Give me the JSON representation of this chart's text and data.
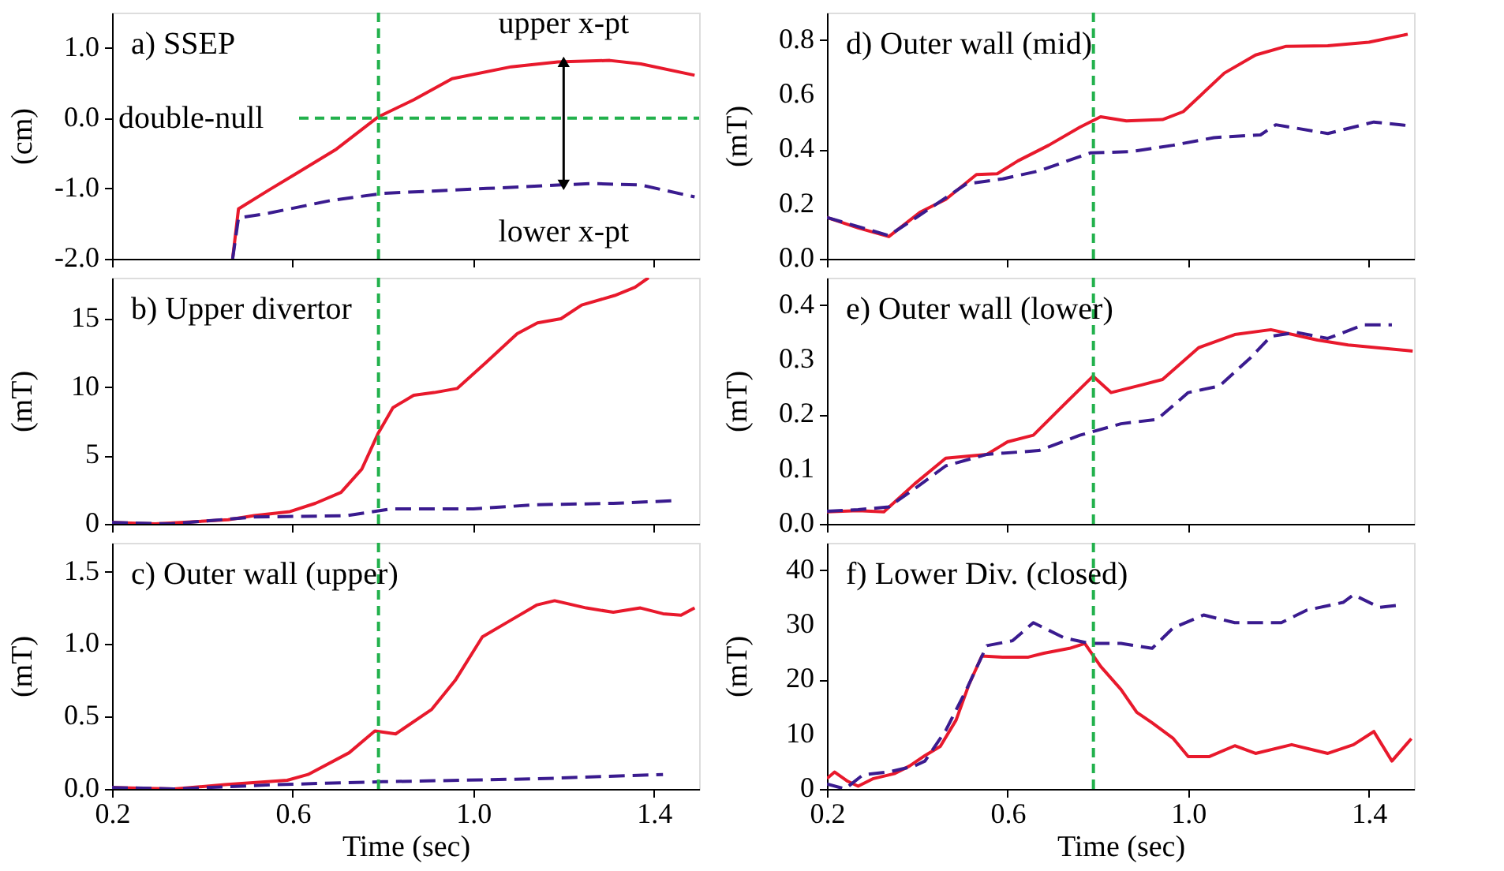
{
  "chart_data": [
    {
      "type": "line",
      "title": "a) SSEP",
      "ylabel": "(cm)",
      "xlim": [
        0.2,
        1.5
      ],
      "xticks": [
        0.2,
        0.6,
        1,
        1.4
      ],
      "ylim": [
        -2.0,
        1.5
      ],
      "yticks": [
        {
          "value": -2,
          "label": "-2.0"
        },
        {
          "value": -1,
          "label": "-1.0"
        },
        {
          "value": 0,
          "label": "0.0"
        },
        {
          "value": 1,
          "label": "1.0"
        }
      ],
      "tick_labels": "y",
      "grid": false,
      "annotations": [
        {
          "text": "upper x-pt",
          "x": 1.2,
          "y": 0.8
        },
        {
          "text": "lower x-pt",
          "x": 1.2,
          "y": -0.95
        }
      ],
      "ref_lines": [
        {
          "axis": "x",
          "value": 0.79,
          "color": "#22b14c",
          "line_style": "dashed"
        },
        {
          "axis": "y",
          "value": 0,
          "label": "double-null",
          "color": "#22b14c",
          "line_style": "dashed"
        }
      ],
      "series": [
        {
          "color": "#e8192c",
          "line_style": "solid",
          "x": [
            0.467,
            0.48,
            0.548,
            0.605,
            0.697,
            0.79,
            0.868,
            0.953,
            1.084,
            1.187,
            1.302,
            1.371,
            1.49
          ],
          "values": [
            -2.0,
            -1.29,
            -1.02,
            -0.8,
            -0.44,
            0.02,
            0.26,
            0.56,
            0.73,
            0.8,
            0.82,
            0.77,
            0.61
          ]
        },
        {
          "color": "#3a1b8f",
          "line_style": "dashed",
          "x": [
            0.467,
            0.48,
            0.548,
            0.685,
            0.8,
            1.03,
            1.26,
            1.37,
            1.49
          ],
          "values": [
            -2.0,
            -1.42,
            -1.35,
            -1.17,
            -1.07,
            -1.0,
            -0.93,
            -0.95,
            -1.12
          ]
        }
      ]
    },
    {
      "type": "line",
      "title": "b) Upper divertor",
      "ylabel": "(mT)",
      "xlim": [
        0.2,
        1.5
      ],
      "xticks": [
        0.2,
        0.6,
        1,
        1.4
      ],
      "ylim": [
        0,
        18
      ],
      "yticks": [
        0,
        5,
        10,
        15
      ],
      "tick_labels": "y",
      "grid": false,
      "ref_lines": [
        {
          "axis": "x",
          "value": 0.79,
          "color": "#22b14c",
          "line_style": "dashed"
        }
      ],
      "series": [
        {
          "color": "#e8192c",
          "line_style": "solid",
          "x": [
            0.2,
            0.296,
            0.457,
            0.515,
            0.594,
            0.65,
            0.707,
            0.753,
            0.789,
            0.822,
            0.868,
            0.913,
            0.964,
            1.028,
            1.097,
            1.142,
            1.194,
            1.24,
            1.313,
            1.358,
            1.388
          ],
          "values": [
            0.1,
            0,
            0.3,
            0.6,
            0.9,
            1.5,
            2.3,
            4.0,
            6.6,
            8.5,
            9.4,
            9.6,
            9.9,
            11.8,
            13.9,
            14.7,
            15.0,
            16.0,
            16.7,
            17.3,
            18.0
          ]
        },
        {
          "color": "#3a1b8f",
          "line_style": "dashed",
          "x": [
            0.2,
            0.33,
            0.514,
            0.72,
            0.82,
            1.0,
            1.14,
            1.31,
            1.45
          ],
          "values": [
            0.1,
            0,
            0.5,
            0.6,
            1.1,
            1.1,
            1.4,
            1.5,
            1.7
          ]
        }
      ]
    },
    {
      "type": "line",
      "title": "c) Outer wall (upper)",
      "ylabel": "(mT)",
      "xlabel": "Time (sec)",
      "xlim": [
        0.2,
        1.5
      ],
      "xticks": [
        0.2,
        0.6,
        {
          "value": 1.0,
          "label": "1.0"
        },
        1.4
      ],
      "ylim": [
        0,
        1.7
      ],
      "yticks": [
        {
          "value": 0,
          "label": "0.0"
        },
        0.5,
        {
          "value": 1,
          "label": "1.0"
        },
        1.5
      ],
      "grid": false,
      "ref_lines": [
        {
          "axis": "x",
          "value": 0.79,
          "color": "#22b14c",
          "line_style": "dashed"
        }
      ],
      "series": [
        {
          "color": "#e8192c",
          "line_style": "solid",
          "x": [
            0.2,
            0.337,
            0.45,
            0.588,
            0.634,
            0.725,
            0.782,
            0.828,
            0.908,
            0.96,
            1.02,
            1.08,
            1.14,
            1.18,
            1.25,
            1.31,
            1.37,
            1.42,
            1.46,
            1.49
          ],
          "values": [
            0.01,
            0,
            0.03,
            0.06,
            0.1,
            0.25,
            0.4,
            0.38,
            0.55,
            0.75,
            1.05,
            1.16,
            1.27,
            1.3,
            1.25,
            1.22,
            1.25,
            1.21,
            1.2,
            1.25
          ]
        },
        {
          "color": "#3a1b8f",
          "line_style": "dashed",
          "x": [
            0.2,
            0.337,
            0.565,
            0.8,
            1.14,
            1.42
          ],
          "values": [
            0.01,
            0,
            0.03,
            0.05,
            0.07,
            0.1
          ]
        }
      ]
    },
    {
      "type": "line",
      "title": "d) Outer wall (mid)",
      "ylabel": "(mT)",
      "xlim": [
        0.2,
        1.5
      ],
      "xticks": [
        0.2,
        0.6,
        1,
        1.4
      ],
      "ylim": [
        0,
        0.9
      ],
      "yticks": [
        {
          "value": 0,
          "label": "0.0"
        },
        0.2,
        0.4,
        0.6,
        0.8
      ],
      "tick_labels": "y",
      "grid": false,
      "ref_lines": [
        {
          "axis": "x",
          "value": 0.79,
          "color": "#22b14c",
          "line_style": "dashed"
        }
      ],
      "series": [
        {
          "color": "#e8192c",
          "line_style": "solid",
          "x": [
            0.2,
            0.269,
            0.337,
            0.406,
            0.463,
            0.531,
            0.577,
            0.623,
            0.691,
            0.76,
            0.806,
            0.863,
            0.943,
            0.989,
            1.08,
            1.149,
            1.217,
            1.309,
            1.4,
            1.486
          ],
          "values": [
            0.151,
            0.113,
            0.081,
            0.17,
            0.217,
            0.308,
            0.311,
            0.358,
            0.415,
            0.481,
            0.519,
            0.504,
            0.509,
            0.538,
            0.679,
            0.745,
            0.777,
            0.779,
            0.792,
            0.821
          ]
        },
        {
          "color": "#3a1b8f",
          "line_style": "dashed",
          "x": [
            0.2,
            0.337,
            0.406,
            0.509,
            0.589,
            0.669,
            0.783,
            0.874,
            0.966,
            1.057,
            1.16,
            1.194,
            1.309,
            1.411,
            1.486
          ],
          "values": [
            0.151,
            0.085,
            0.16,
            0.274,
            0.292,
            0.321,
            0.387,
            0.392,
            0.415,
            0.443,
            0.453,
            0.49,
            0.458,
            0.5,
            0.487
          ]
        }
      ]
    },
    {
      "type": "line",
      "title": "e) Outer wall (lower)",
      "ylabel": "(mT)",
      "xlim": [
        0.2,
        1.5
      ],
      "xticks": [
        0.2,
        0.6,
        1,
        1.4
      ],
      "ylim": [
        0,
        0.45
      ],
      "yticks": [
        {
          "value": 0,
          "label": "0.0"
        },
        0.1,
        0.2,
        0.3,
        0.4
      ],
      "tick_labels": "y",
      "grid": false,
      "ref_lines": [
        {
          "axis": "x",
          "value": 0.79,
          "color": "#22b14c",
          "line_style": "dashed"
        }
      ],
      "series": [
        {
          "color": "#e8192c",
          "line_style": "solid",
          "x": [
            0.2,
            0.269,
            0.326,
            0.394,
            0.463,
            0.554,
            0.6,
            0.657,
            0.714,
            0.789,
            0.829,
            0.897,
            0.943,
            1.023,
            1.103,
            1.183,
            1.286,
            1.354,
            1.497
          ],
          "values": [
            0.022,
            0.024,
            0.022,
            0.073,
            0.12,
            0.127,
            0.15,
            0.162,
            0.209,
            0.27,
            0.24,
            0.254,
            0.264,
            0.322,
            0.346,
            0.355,
            0.336,
            0.327,
            0.316
          ]
        },
        {
          "color": "#3a1b8f",
          "line_style": "dashed",
          "x": [
            0.2,
            0.269,
            0.337,
            0.394,
            0.463,
            0.554,
            0.669,
            0.76,
            0.851,
            0.931,
            1.0,
            1.069,
            1.137,
            1.183,
            1.24,
            1.309,
            1.389,
            1.451
          ],
          "values": [
            0.023,
            0.026,
            0.031,
            0.064,
            0.106,
            0.127,
            0.134,
            0.162,
            0.183,
            0.191,
            0.24,
            0.252,
            0.303,
            0.343,
            0.35,
            0.339,
            0.364,
            0.364
          ]
        }
      ]
    },
    {
      "type": "line",
      "title": "f) Lower Div. (closed)",
      "ylabel": "(mT)",
      "xlabel": "Time (sec)",
      "xlim": [
        0.2,
        1.5
      ],
      "xticks": [
        0.2,
        0.6,
        {
          "value": 1.0,
          "label": "1.0"
        },
        1.4
      ],
      "ylim": [
        0,
        45
      ],
      "yticks": [
        0,
        10,
        20,
        30,
        40
      ],
      "grid": false,
      "ref_lines": [
        {
          "axis": "x",
          "value": 0.79,
          "color": "#22b14c",
          "line_style": "dashed"
        }
      ],
      "series": [
        {
          "color": "#e8192c",
          "line_style": "solid",
          "x": [
            0.2,
            0.217,
            0.246,
            0.269,
            0.303,
            0.349,
            0.383,
            0.417,
            0.451,
            0.486,
            0.514,
            0.543,
            0.589,
            0.646,
            0.68,
            0.737,
            0.771,
            0.806,
            0.851,
            0.886,
            0.92,
            0.966,
            1.0,
            1.046,
            1.103,
            1.149,
            1.229,
            1.309,
            1.366,
            1.411,
            1.451,
            1.494
          ],
          "values": [
            1.9,
            3.1,
            1.4,
            0.5,
            1.9,
            2.8,
            4.2,
            6.1,
            7.8,
            12.6,
            19.0,
            24.3,
            24.1,
            24.1,
            24.8,
            25.7,
            26.6,
            22.4,
            18.2,
            14.0,
            12.1,
            9.3,
            5.9,
            5.9,
            7.9,
            6.5,
            8.1,
            6.5,
            8.1,
            10.5,
            5.1,
            9.2
          ]
        },
        {
          "color": "#3a1b8f",
          "line_style": "dashed",
          "x": [
            0.2,
            0.24,
            0.28,
            0.337,
            0.394,
            0.417,
            0.463,
            0.509,
            0.554,
            0.611,
            0.657,
            0.726,
            0.783,
            0.851,
            0.92,
            0.966,
            1.034,
            1.103,
            1.206,
            1.263,
            1.343,
            1.366,
            1.423,
            1.469
          ],
          "values": [
            0.9,
            0,
            2.6,
            3.1,
            4.2,
            5.1,
            10.7,
            18.2,
            26.2,
            27.1,
            30.4,
            27.6,
            26.6,
            26.6,
            25.7,
            29.4,
            31.8,
            30.4,
            30.4,
            32.7,
            34.1,
            35.5,
            33.2,
            33.6
          ]
        }
      ]
    }
  ]
}
